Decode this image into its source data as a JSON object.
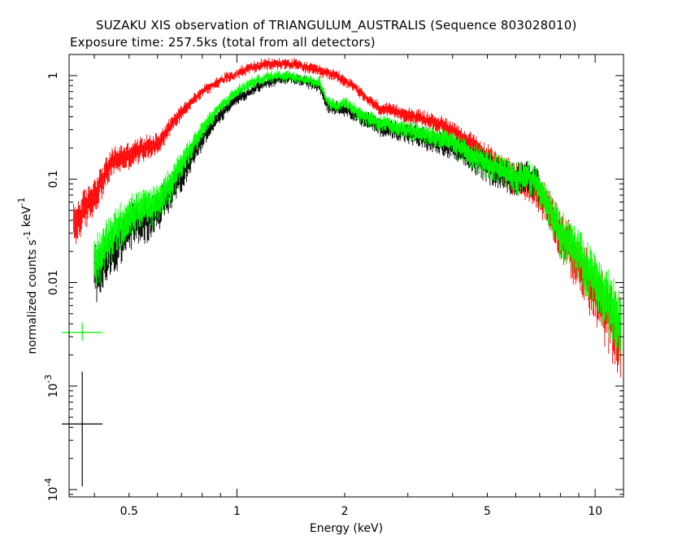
{
  "header": {
    "title": "SUZAKU XIS observation of TRIANGULUM_AUSTRALIS (Sequence 803028010)",
    "subtitle": "Exposure time: 257.5ks (total from all detectors)"
  },
  "chart_data": {
    "type": "scatter",
    "title": "SUZAKU XIS observation of TRIANGULUM_AUSTRALIS (Sequence 803028010)",
    "subtitle": "Exposure time: 257.5ks (total from all detectors)",
    "xlabel": "Energy (keV)",
    "ylabel": "normalized counts s^-1 keV^-1",
    "xscale": "log",
    "yscale": "log",
    "xlim": [
      0.34,
      12.0
    ],
    "ylim": [
      8.5e-05,
      1.6
    ],
    "grid": false,
    "x_ticks": [
      {
        "value": 0.5,
        "label": "0.5"
      },
      {
        "value": 1,
        "label": "1"
      },
      {
        "value": 2,
        "label": "2"
      },
      {
        "value": 5,
        "label": "5"
      },
      {
        "value": 10,
        "label": "10"
      }
    ],
    "y_ticks": [
      {
        "value": 1,
        "label": "1"
      },
      {
        "value": 0.1,
        "label": "0.1"
      },
      {
        "value": 0.01,
        "label": "0.01"
      },
      {
        "value": 0.001,
        "label": "10^-3"
      },
      {
        "value": 0.0001,
        "label": "10^-4"
      }
    ],
    "series": [
      {
        "color": "#ff0000",
        "x": [
          0.35,
          0.4,
          0.45,
          0.5,
          0.55,
          0.6,
          0.7,
          0.8,
          0.9,
          1.0,
          1.1,
          1.2,
          1.3,
          1.4,
          1.5,
          1.7,
          1.9,
          2.1,
          2.3,
          2.5,
          3.0,
          3.5,
          4.0,
          5.0,
          6.0,
          6.5,
          7.0,
          7.5,
          8.0,
          9.0,
          10.0,
          11.0,
          11.8
        ],
        "y": [
          0.035,
          0.07,
          0.15,
          0.17,
          0.2,
          0.22,
          0.45,
          0.7,
          0.9,
          1.05,
          1.2,
          1.28,
          1.3,
          1.3,
          1.25,
          1.1,
          1.0,
          0.8,
          0.6,
          0.48,
          0.42,
          0.36,
          0.3,
          0.16,
          0.1,
          0.09,
          0.07,
          0.05,
          0.03,
          0.015,
          0.008,
          0.0045,
          0.003
        ]
      },
      {
        "color": "#00ff00",
        "x": [
          0.4,
          0.45,
          0.5,
          0.55,
          0.6,
          0.65,
          0.7,
          0.8,
          0.9,
          1.0,
          1.1,
          1.2,
          1.3,
          1.4,
          1.5,
          1.7,
          1.8,
          1.9,
          2.0,
          2.2,
          2.5,
          3.0,
          3.5,
          4.0,
          5.0,
          6.0,
          6.5,
          7.0,
          7.5,
          8.0,
          9.0,
          10.0,
          11.0,
          11.8
        ],
        "y": [
          0.015,
          0.03,
          0.045,
          0.05,
          0.06,
          0.09,
          0.14,
          0.3,
          0.5,
          0.7,
          0.85,
          0.95,
          1.0,
          1.0,
          0.95,
          0.85,
          0.55,
          0.5,
          0.55,
          0.42,
          0.35,
          0.3,
          0.26,
          0.22,
          0.14,
          0.1,
          0.11,
          0.08,
          0.05,
          0.03,
          0.018,
          0.01,
          0.006,
          0.0035
        ]
      },
      {
        "color": "#000000",
        "x": [
          0.4,
          0.45,
          0.5,
          0.55,
          0.6,
          0.7,
          0.8,
          0.9,
          1.0,
          1.2,
          1.4,
          1.5,
          1.7,
          1.8,
          2.0,
          2.5,
          3.0,
          4.0,
          5.0,
          6.0,
          6.5,
          7.0
        ],
        "y": [
          0.012,
          0.02,
          0.035,
          0.04,
          0.05,
          0.11,
          0.25,
          0.42,
          0.6,
          0.85,
          0.95,
          0.9,
          0.8,
          0.5,
          0.48,
          0.32,
          0.28,
          0.2,
          0.13,
          0.1,
          0.11,
          0.08
        ]
      }
    ],
    "legend_markers": [
      {
        "color": "#00ff00",
        "x": 0.37,
        "y": 0.0033
      },
      {
        "color": "#000000",
        "x": 0.37,
        "y": 0.00043
      }
    ]
  }
}
